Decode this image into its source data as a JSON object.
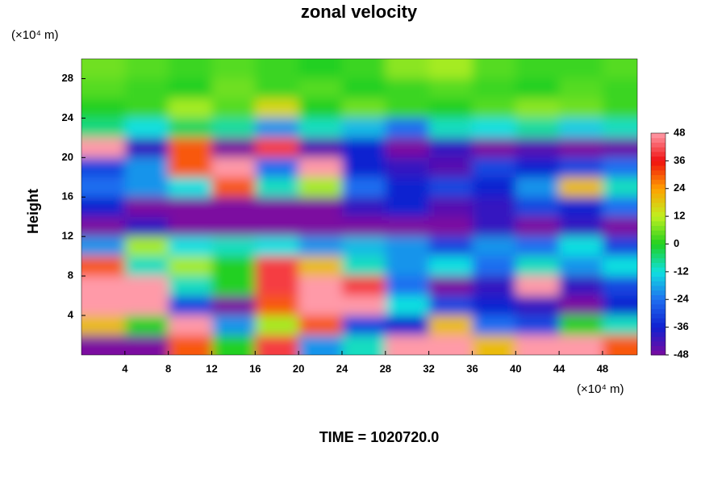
{
  "chart_data": {
    "type": "heatmap",
    "title": "zonal velocity",
    "y_unit": "(×10⁴ m)",
    "x_unit": "(×10⁴ m)",
    "ylabel": "Height",
    "footer": "TIME = 1020720.0",
    "x": [
      2,
      6,
      10,
      14,
      18,
      22,
      26,
      30,
      34,
      38,
      42,
      46,
      50
    ],
    "y": [
      29,
      27,
      25,
      23,
      21,
      19,
      17,
      15,
      13,
      11,
      9,
      7,
      5,
      3,
      1
    ],
    "z": [
      [
        6,
        4,
        2,
        4,
        2,
        0,
        2,
        8,
        10,
        4,
        2,
        2,
        4
      ],
      [
        4,
        2,
        0,
        6,
        2,
        4,
        0,
        2,
        4,
        2,
        0,
        4,
        2
      ],
      [
        0,
        2,
        10,
        4,
        16,
        0,
        6,
        2,
        0,
        4,
        8,
        6,
        2
      ],
      [
        -6,
        -12,
        -4,
        -8,
        -20,
        -10,
        -16,
        -24,
        -10,
        -12,
        -8,
        -14,
        -10
      ],
      [
        48,
        -40,
        30,
        -48,
        40,
        -44,
        -36,
        -48,
        -40,
        -48,
        -44,
        -48,
        -46
      ],
      [
        -30,
        -20,
        30,
        48,
        -24,
        48,
        -36,
        -40,
        -44,
        -30,
        -36,
        -30,
        -24
      ],
      [
        -24,
        -20,
        -12,
        30,
        -10,
        10,
        -24,
        -36,
        -30,
        -36,
        -20,
        20,
        -10
      ],
      [
        -36,
        -48,
        -48,
        -48,
        -48,
        -48,
        -40,
        -36,
        -44,
        -40,
        -30,
        -36,
        -24
      ],
      [
        -48,
        -40,
        -48,
        -48,
        -48,
        -48,
        -48,
        -48,
        -48,
        -40,
        -48,
        -40,
        -48
      ],
      [
        -20,
        10,
        -12,
        -10,
        -12,
        -20,
        -16,
        -20,
        -30,
        -20,
        -24,
        -12,
        -30
      ],
      [
        30,
        -10,
        10,
        0,
        40,
        20,
        -10,
        -20,
        -12,
        -24,
        -10,
        -20,
        -12
      ],
      [
        48,
        48,
        -10,
        0,
        40,
        48,
        40,
        -24,
        -48,
        -40,
        48,
        -40,
        -30
      ],
      [
        48,
        48,
        -30,
        -48,
        30,
        48,
        48,
        -12,
        -30,
        -36,
        -40,
        -48,
        -36
      ],
      [
        20,
        0,
        48,
        -20,
        10,
        30,
        -30,
        -36,
        20,
        -24,
        -30,
        0,
        -10
      ],
      [
        -48,
        -48,
        30,
        0,
        40,
        -20,
        -10,
        48,
        48,
        20,
        48,
        48,
        30
      ]
    ],
    "xlim": [
      0,
      51.2
    ],
    "ylim": [
      0,
      30
    ],
    "xticks": [
      4,
      8,
      12,
      16,
      20,
      24,
      28,
      32,
      36,
      40,
      44,
      48
    ],
    "yticks": [
      4,
      8,
      12,
      16,
      20,
      24,
      28
    ],
    "zlim": [
      -48,
      48
    ],
    "zticks": [
      48,
      36,
      24,
      12,
      0,
      -12,
      -24,
      -36,
      -48
    ],
    "colors": [
      "#7b0aa0",
      "#1020d0",
      "#1e6ef0",
      "#10e0e0",
      "#20d020",
      "#c0f020",
      "#ffa000",
      "#f01010",
      "#ff9aa8"
    ]
  }
}
